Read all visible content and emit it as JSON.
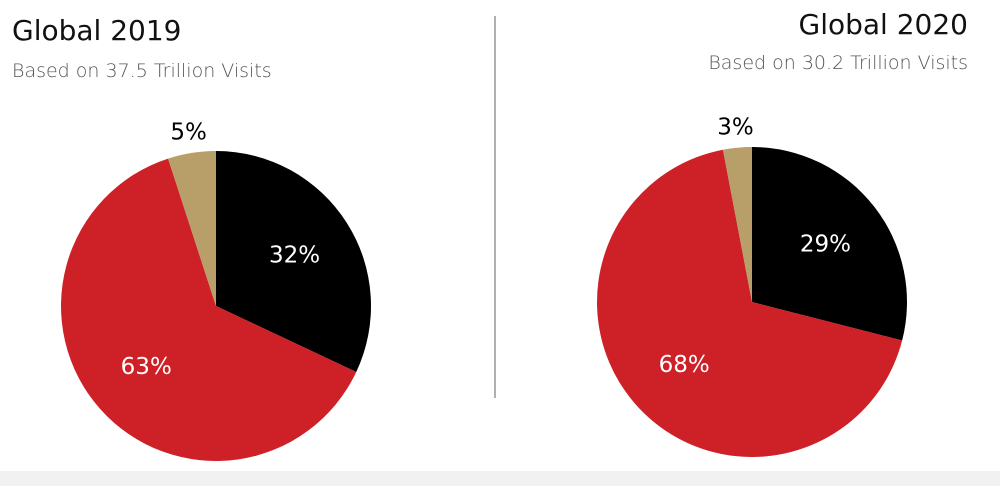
{
  "colors": {
    "black_slice": "#000000",
    "red_slice": "#ce2027",
    "tan_slice": "#b89f6a",
    "label_inside": "#ffffff",
    "label_outside": "#000000"
  },
  "chart_data": [
    {
      "type": "pie",
      "title": "Global 2019",
      "subtitle": "Based on 37.5 Trillion Visits",
      "start_angle_deg": 0,
      "direction": "clockwise",
      "slices": [
        {
          "label": "32%",
          "value": 32,
          "color": "#000000",
          "label_position": "inside"
        },
        {
          "label": "63%",
          "value": 63,
          "color": "#ce2027",
          "label_position": "inside"
        },
        {
          "label": "5%",
          "value": 5,
          "color": "#b89f6a",
          "label_position": "outside"
        }
      ]
    },
    {
      "type": "pie",
      "title": "Global 2020",
      "subtitle": "Based on 30.2 Trillion Visits",
      "start_angle_deg": 0,
      "direction": "clockwise",
      "slices": [
        {
          "label": "29%",
          "value": 29,
          "color": "#000000",
          "label_position": "inside"
        },
        {
          "label": "68%",
          "value": 68,
          "color": "#ce2027",
          "label_position": "inside"
        },
        {
          "label": "3%",
          "value": 3,
          "color": "#b89f6a",
          "label_position": "outside"
        }
      ]
    }
  ]
}
